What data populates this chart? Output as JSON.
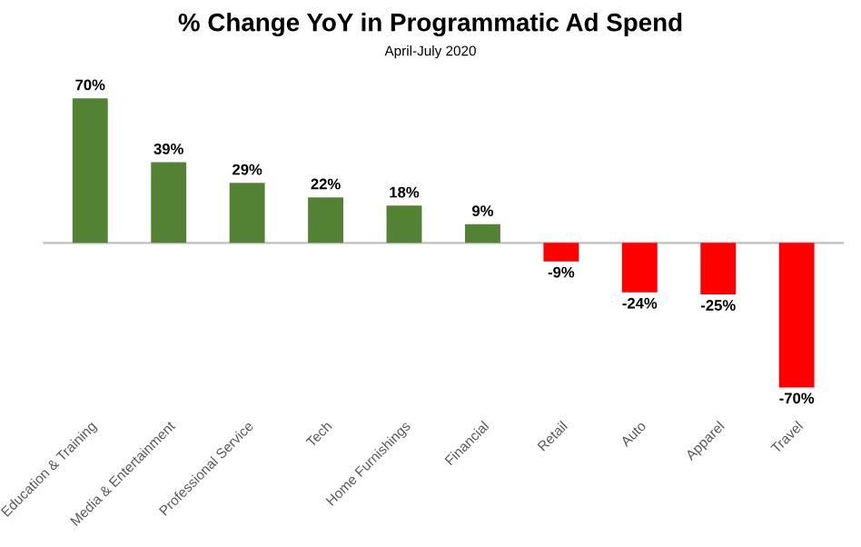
{
  "chart_data": {
    "type": "bar",
    "title": "% Change YoY in Programmatic Ad Spend",
    "subtitle": "April-July 2020",
    "categories": [
      "Education & Training",
      "Media & Entertainment",
      "Professional Service",
      "Tech",
      "Home Furnishings",
      "Financial",
      "Retail",
      "Auto",
      "Apparel",
      "Travel"
    ],
    "values": [
      70,
      39,
      29,
      22,
      18,
      9,
      -9,
      -24,
      -25,
      -70
    ],
    "colors": [
      "#548235",
      "#548235",
      "#548235",
      "#548235",
      "#548235",
      "#548235",
      "#ff0000",
      "#ff0000",
      "#ff0000",
      "#ff0000"
    ],
    "value_labels": [
      "70%",
      "39%",
      "29%",
      "22%",
      "18%",
      "9%",
      "-9%",
      "-24%",
      "-25%",
      "-70%"
    ],
    "grid": false,
    "legend": false
  }
}
